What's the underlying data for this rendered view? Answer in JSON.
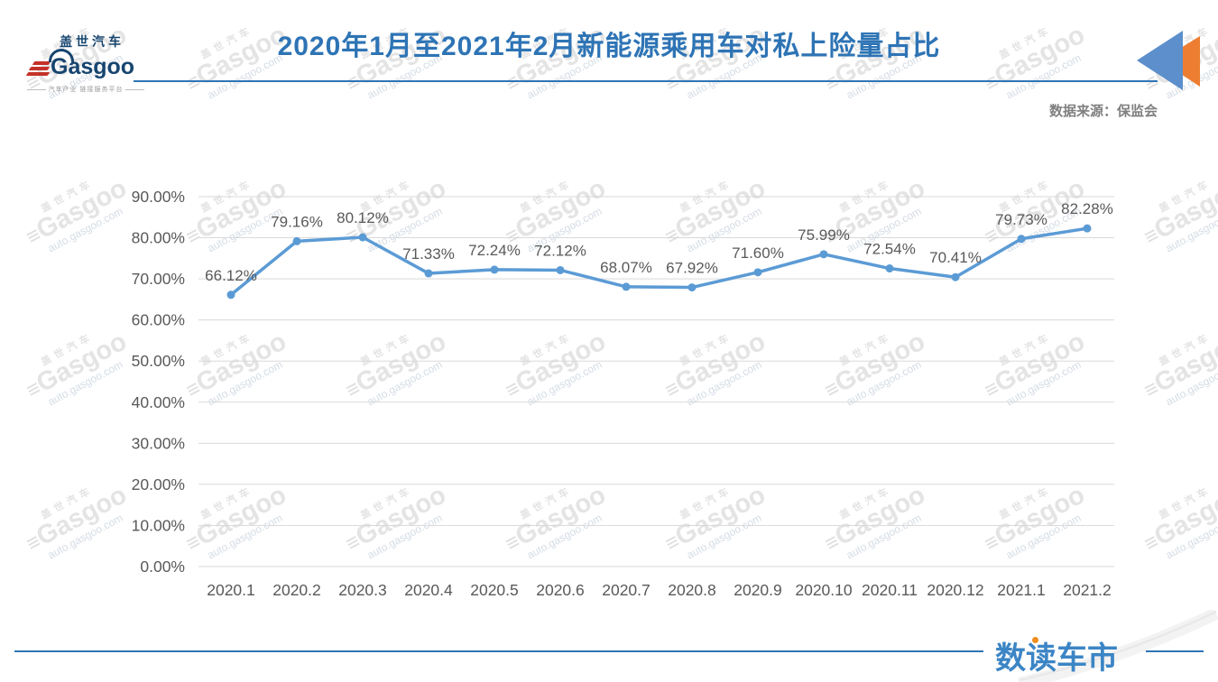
{
  "header": {
    "title": "2020年1月至2021年2月新能源乘用车对私上险量占比",
    "source": "数据来源：保监会"
  },
  "logo": {
    "cn": "盖世汽车",
    "en": "Gasgoo",
    "tagline": "汽车产业 链接服务平台"
  },
  "watermark": {
    "cn": "盖世汽车",
    "mark": "≡",
    "en": "Gasgoo",
    "site": "auto.gasgoo.com"
  },
  "footer": {
    "brand": "数读车市"
  },
  "colors": {
    "title_blue": "#2E74B5",
    "rule_blue": "#2E75B6",
    "line_blue": "#5B9BD5",
    "triangle_blue": "#5C8FCB",
    "triangle_orange": "#ED7D31",
    "brand_blue": "#3C85C5",
    "brand_dot_orange": "#F18D1E",
    "grid_gray": "#D9D9D9",
    "label_gray": "#595959",
    "source_gray": "#7F7F7F"
  },
  "chart_data": {
    "type": "line",
    "title": "2020年1月至2021年2月新能源乘用车对私上险量占比",
    "categories": [
      "2020.1",
      "2020.2",
      "2020.3",
      "2020.4",
      "2020.5",
      "2020.6",
      "2020.7",
      "2020.8",
      "2020.9",
      "2020.10",
      "2020.11",
      "2020.12",
      "2021.1",
      "2021.2"
    ],
    "values": [
      66.12,
      79.16,
      80.12,
      71.33,
      72.24,
      72.12,
      68.07,
      67.92,
      71.6,
      75.99,
      72.54,
      70.41,
      79.73,
      82.28
    ],
    "ylim": [
      0,
      90
    ],
    "ytick_step": 10,
    "ytick_suffix": "%",
    "grid": true,
    "legend": "none",
    "data_labels": true,
    "xlabel": "",
    "ylabel": ""
  }
}
